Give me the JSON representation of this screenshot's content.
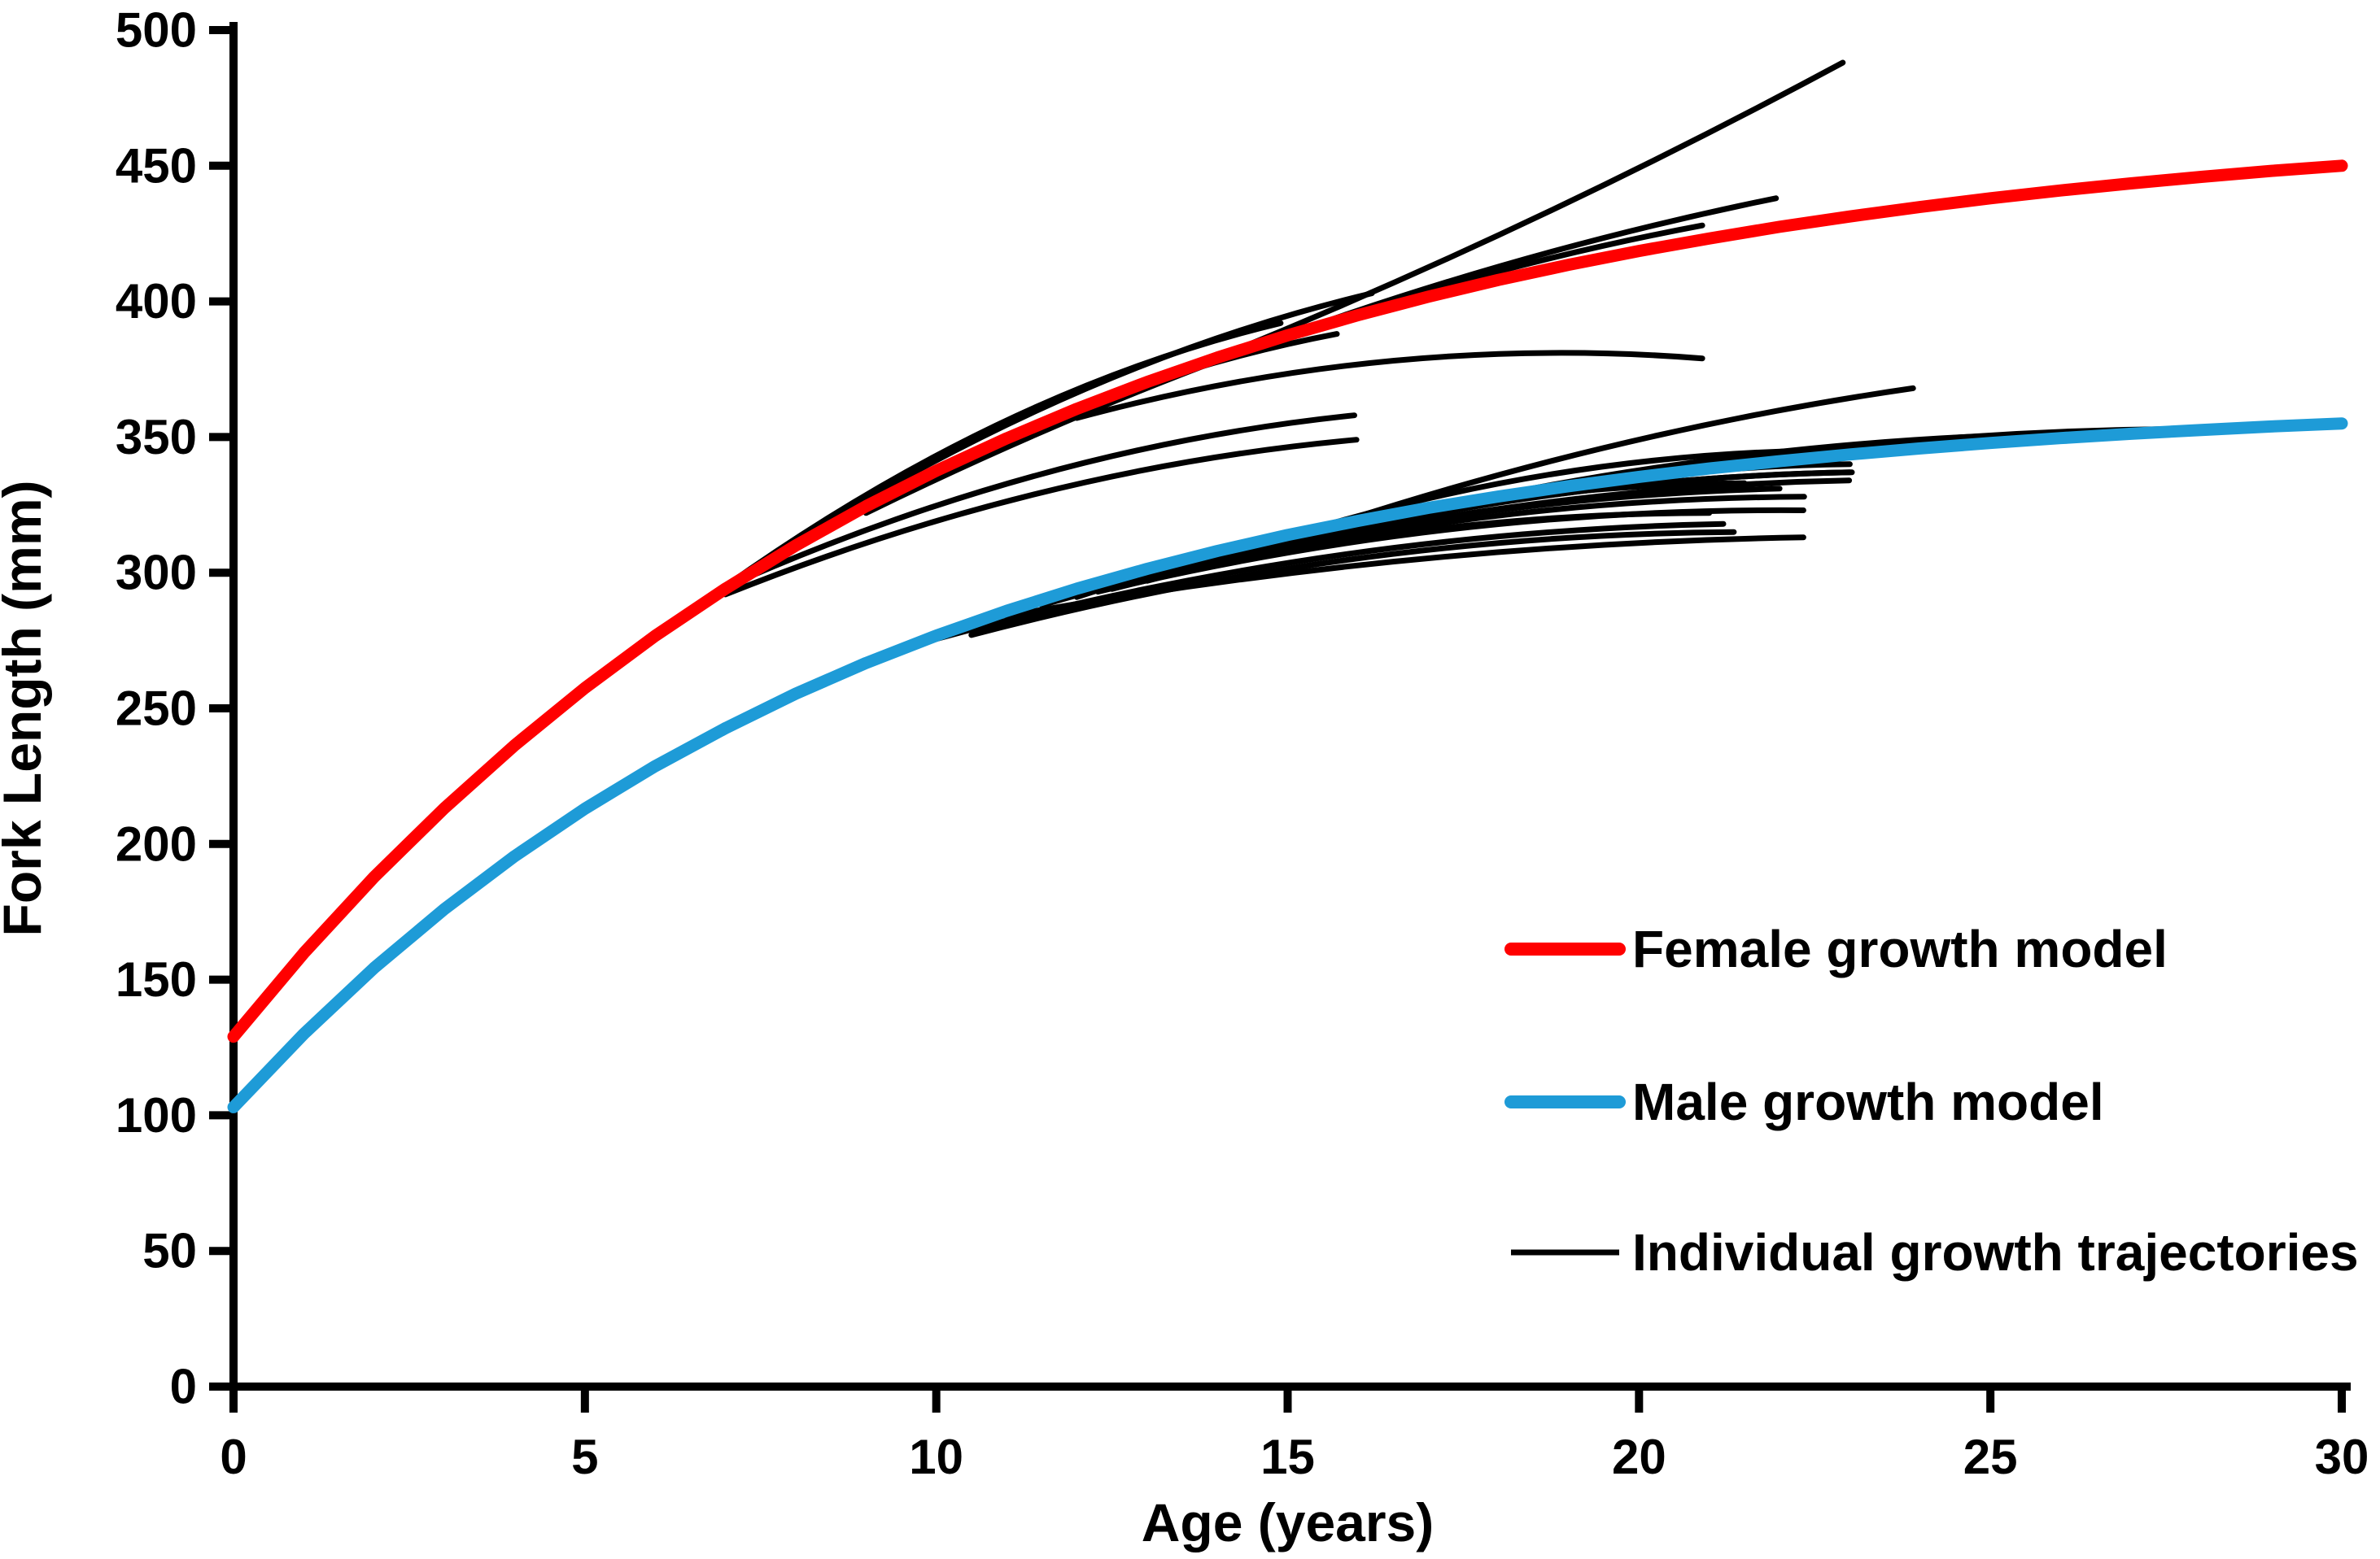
{
  "chart_data": {
    "type": "line",
    "title": "",
    "xlabel": "Age (years)",
    "ylabel": "Fork Length (mm)",
    "xlim": [
      0,
      30
    ],
    "ylim": [
      0,
      500
    ],
    "xticks": [
      0,
      5,
      10,
      15,
      20,
      25,
      30
    ],
    "yticks": [
      0,
      50,
      100,
      150,
      200,
      250,
      300,
      350,
      400,
      450,
      500
    ],
    "grid": false,
    "legend_position": "right-middle",
    "axis_color": "#000000",
    "background_color": "#ffffff",
    "series": [
      {
        "name": "Female growth model",
        "color": "#ff0000",
        "stroke_width": 15,
        "t_start": 0,
        "t_step": 1,
        "values": [
          129.0,
          159.8,
          187.8,
          213.2,
          236.4,
          257.5,
          276.7,
          294.1,
          310.0,
          324.5,
          337.6,
          349.5,
          360.4,
          370.3,
          379.3,
          387.5,
          394.9,
          401.7,
          407.9,
          413.5,
          418.6,
          423.2,
          427.5,
          431.3,
          434.8,
          438.0,
          440.9,
          443.5,
          445.9,
          448.1,
          450.0
        ]
      },
      {
        "name": "Male growth model",
        "color": "#1e9bd7",
        "stroke_width": 15,
        "t_start": 0,
        "t_step": 1,
        "values": [
          103.0,
          130.0,
          154.3,
          176.0,
          195.5,
          213.0,
          228.7,
          242.7,
          255.4,
          266.7,
          276.8,
          285.9,
          294.1,
          301.4,
          308.0,
          313.9,
          319.1,
          323.9,
          328.1,
          331.9,
          335.3,
          338.4,
          341.1,
          343.6,
          345.8,
          347.8,
          349.6,
          351.2,
          352.6,
          353.9,
          355.0
        ]
      }
    ],
    "trajectories": {
      "name": "Individual growth trajectories",
      "color": "#000000",
      "stroke_width": 7,
      "note": "segments as [age_start, length_start, age_end, length_end, bow_mm]",
      "segments": [
        [
          6.94,
          294,
          8.2,
          313,
          1
        ],
        [
          6.94,
          294,
          15.95,
          358,
          10
        ],
        [
          7.0,
          292,
          15.98,
          349,
          9
        ],
        [
          7.0,
          295,
          14.9,
          392,
          12
        ],
        [
          7.3,
          300,
          16.2,
          403,
          12
        ],
        [
          8.0,
          310,
          15.7,
          388,
          10
        ],
        [
          9.0,
          322,
          21.95,
          438,
          12
        ],
        [
          10.0,
          335,
          20.9,
          428,
          10
        ],
        [
          12.7,
          366,
          22.9,
          488,
          -5
        ],
        [
          12.0,
          357,
          20.9,
          379,
          10
        ],
        [
          9.5,
          272,
          21.2,
          318,
          10
        ],
        [
          10.5,
          277,
          21.35,
          315,
          9
        ],
        [
          11.0,
          284,
          22.34,
          313,
          6
        ],
        [
          11.5,
          288,
          22.0,
          331,
          9
        ],
        [
          12.3,
          293,
          22.34,
          323,
          8
        ],
        [
          12.5,
          294,
          21.0,
          322,
          7
        ],
        [
          12.8,
          296,
          23.0,
          337,
          9
        ],
        [
          13.0,
          297,
          22.99,
          334,
          8
        ],
        [
          13.3,
          299,
          22.35,
          328,
          7
        ],
        [
          13.6,
          301,
          23.03,
          337,
          8
        ],
        [
          13.8,
          302,
          25.58,
          351,
          10
        ],
        [
          14.0,
          303,
          27.8,
          353,
          12
        ],
        [
          14.3,
          305,
          23.0,
          340,
          8
        ],
        [
          15.5,
          316.5,
          23.9,
          368,
          5
        ],
        [
          15.6,
          318,
          22.5,
          345,
          6
        ],
        [
          12.0,
          291,
          21.5,
          333,
          10
        ]
      ]
    },
    "legend": [
      {
        "label": "Female growth model",
        "color": "#ff0000",
        "swatch_width": 16,
        "swatch_cap": "round"
      },
      {
        "label": "Male growth model",
        "color": "#1e9bd7",
        "swatch_width": 16,
        "swatch_cap": "round"
      },
      {
        "label": "Individual growth trajectories",
        "color": "#000000",
        "swatch_width": 7,
        "swatch_cap": "butt"
      }
    ]
  }
}
